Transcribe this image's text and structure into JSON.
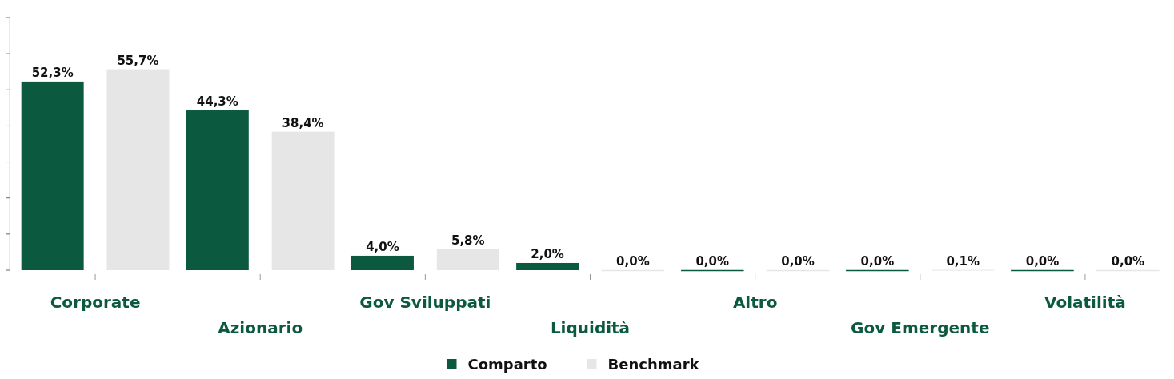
{
  "chart_data": {
    "type": "bar",
    "categories": [
      "Corporate",
      "Azionario",
      "Gov Sviluppati",
      "Liquidità",
      "Altro",
      "Gov Emergente",
      "Volatilità"
    ],
    "series": [
      {
        "name": "Comparto",
        "color": "#0b5a40",
        "values": [
          52.3,
          44.3,
          4.0,
          2.0,
          0.0,
          0.0,
          0.0
        ],
        "value_labels": [
          "52,3%",
          "44,3%",
          "4,0%",
          "2,0%",
          "0,0%",
          "0,0%",
          "0,0%"
        ]
      },
      {
        "name": "Benchmark",
        "color": "#e6e6e6",
        "values": [
          55.7,
          38.4,
          5.8,
          0.0,
          0.0,
          0.1,
          0.0
        ],
        "value_labels": [
          "55,7%",
          "38,4%",
          "5,8%",
          "0,0%",
          "0,0%",
          "0,1%",
          "0,0%"
        ]
      }
    ],
    "ylim": [
      0,
      70
    ],
    "yticks": [
      {
        "value": 0,
        "label": null
      },
      {
        "value": 10,
        "label": null
      },
      {
        "value": 20,
        "label": null
      },
      {
        "value": 30,
        "label": null
      },
      {
        "value": 40,
        "label": null
      },
      {
        "value": 50,
        "label": null
      },
      {
        "value": 60,
        "label": null
      },
      {
        "value": 70,
        "label": null
      }
    ],
    "tick_labels": "x",
    "legend": "bottom",
    "grid": false
  }
}
